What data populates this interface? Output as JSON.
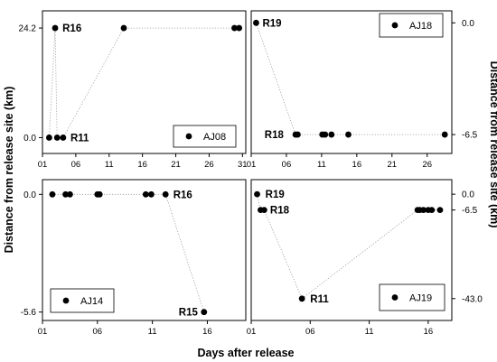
{
  "x_axis_title": "Days after release",
  "y_axis_title_left": "Distance from release site (km)",
  "y_axis_title_right": "Distance from release site (km)",
  "chart_data": [
    {
      "type": "scatter",
      "name": "AJ08",
      "legend": "AJ08",
      "legend_placement": "bottom-right",
      "xticks": [
        "01",
        "06",
        "11",
        "16",
        "21",
        "26",
        "31"
      ],
      "xlim": [
        1,
        31.5
      ],
      "yticks": [
        "0.0",
        "24.2"
      ],
      "ylim": [
        -3.5,
        28
      ],
      "ytick_side": "left",
      "points": [
        [
          2,
          0
        ],
        [
          2.9,
          24.2
        ],
        [
          3.2,
          0
        ],
        [
          4.1,
          0
        ],
        [
          13.2,
          24.2
        ],
        [
          29.8,
          24.2
        ],
        [
          30.5,
          24.2
        ]
      ],
      "annotations": [
        {
          "text": "R16",
          "x": 4.0,
          "y": 24.2
        },
        {
          "text": "R11",
          "x": 5.2,
          "y": 0
        }
      ]
    },
    {
      "type": "scatter",
      "name": "AJ18",
      "legend": "AJ18",
      "legend_placement": "top-right",
      "xticks": [
        "01",
        "06",
        "11",
        "16",
        "21",
        "26"
      ],
      "xlim": [
        1,
        29.5
      ],
      "yticks": [
        "0.0",
        "-6.5"
      ],
      "ylim": [
        -7.6,
        0.7
      ],
      "ytick_side": "right",
      "points": [
        [
          1.7,
          0
        ],
        [
          7.3,
          -6.5
        ],
        [
          7.6,
          -6.5
        ],
        [
          11.1,
          -6.5
        ],
        [
          11.5,
          -6.5
        ],
        [
          12.4,
          -6.5
        ],
        [
          14.8,
          -6.5
        ],
        [
          28.5,
          -6.5
        ]
      ],
      "annotations": [
        {
          "text": "R19",
          "x": 2.6,
          "y": 0
        },
        {
          "text": "R18",
          "x": 2.9,
          "y": -6.5
        }
      ]
    },
    {
      "type": "scatter",
      "name": "AJ14",
      "legend": "AJ14",
      "legend_placement": "bottom-left",
      "xticks": [
        "01",
        "06",
        "11",
        "16"
      ],
      "xlim": [
        1,
        19.5
      ],
      "yticks": [
        "0.0",
        "-5.6"
      ],
      "ylim": [
        -6.0,
        0.7
      ],
      "ytick_side": "left",
      "points": [
        [
          1.9,
          0
        ],
        [
          3.1,
          0
        ],
        [
          3.5,
          0
        ],
        [
          6.0,
          0
        ],
        [
          6.2,
          0
        ],
        [
          10.4,
          0
        ],
        [
          10.9,
          0
        ],
        [
          12.2,
          0
        ],
        [
          15.7,
          -5.6
        ]
      ],
      "annotations": [
        {
          "text": "R16",
          "x": 12.9,
          "y": 0
        },
        {
          "text": "R15",
          "x": 13.4,
          "y": -5.6
        }
      ]
    },
    {
      "type": "scatter",
      "name": "AJ19",
      "legend": "AJ19",
      "legend_placement": "bottom-right",
      "xticks": [
        "01",
        "06",
        "11",
        "16"
      ],
      "xlim": [
        1,
        18
      ],
      "yticks": [
        "0.0",
        "-6.5",
        "-43.0"
      ],
      "ylim": [
        -52,
        6
      ],
      "ytick_side": "right",
      "points": [
        [
          1.5,
          0
        ],
        [
          1.8,
          -6.5
        ],
        [
          2.1,
          -6.5
        ],
        [
          5.3,
          -43
        ],
        [
          15.1,
          -6.5
        ],
        [
          15.3,
          -6.5
        ],
        [
          15.6,
          -6.5
        ],
        [
          16.0,
          -6.5
        ],
        [
          16.3,
          -6.5
        ],
        [
          17.0,
          -6.5
        ]
      ],
      "annotations": [
        {
          "text": "R19",
          "x": 2.2,
          "y": 0
        },
        {
          "text": "R18",
          "x": 2.6,
          "y": -6.5
        },
        {
          "text": "R11",
          "x": 6.0,
          "y": -43
        }
      ]
    }
  ]
}
